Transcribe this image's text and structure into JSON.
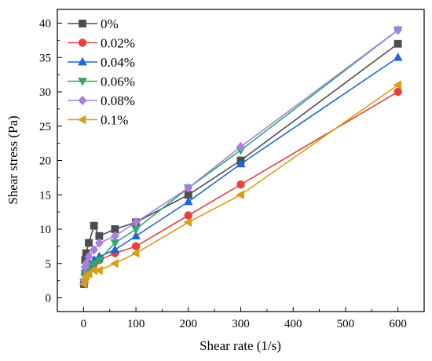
{
  "chart_data": {
    "type": "line",
    "xlabel": "Shear rate (1/s)",
    "ylabel": "Shear stress (Pa)",
    "xlim": [
      -50,
      650
    ],
    "ylim": [
      -2,
      42
    ],
    "xticks": [
      0,
      100,
      200,
      300,
      400,
      500,
      600
    ],
    "yticks": [
      0,
      5,
      10,
      15,
      20,
      25,
      30,
      35,
      40
    ],
    "grid": false,
    "legend_position": "top-left",
    "series": [
      {
        "name": "0%",
        "color": "#4d4d4d",
        "marker": "square",
        "x": [
          1,
          3,
          5,
          10,
          20,
          30,
          60,
          100,
          200,
          300,
          600
        ],
        "y": [
          2.0,
          5.5,
          6.5,
          8.0,
          10.5,
          9.0,
          10.0,
          11.0,
          15.0,
          20.0,
          37.0
        ]
      },
      {
        "name": "0.02%",
        "color": "#e8413b",
        "marker": "circle",
        "x": [
          1,
          3,
          5,
          10,
          20,
          30,
          60,
          100,
          200,
          300,
          600
        ],
        "y": [
          2.3,
          3.5,
          4.0,
          4.5,
          5.0,
          5.5,
          6.5,
          7.5,
          12.0,
          16.5,
          30.0
        ]
      },
      {
        "name": "0.04%",
        "color": "#1f64d8",
        "marker": "triangle-up",
        "x": [
          1,
          3,
          5,
          10,
          20,
          30,
          60,
          100,
          200,
          300,
          600
        ],
        "y": [
          2.5,
          3.8,
          4.5,
          5.0,
          5.5,
          6.0,
          7.0,
          9.0,
          14.0,
          19.5,
          35.0
        ]
      },
      {
        "name": "0.06%",
        "color": "#2ea869",
        "marker": "triangle-down",
        "x": [
          1,
          3,
          5,
          10,
          20,
          30,
          60,
          100,
          200,
          300,
          600
        ],
        "y": [
          2.3,
          3.5,
          4.0,
          4.5,
          5.0,
          5.5,
          8.0,
          10.0,
          16.0,
          21.5,
          39.0
        ]
      },
      {
        "name": "0.08%",
        "color": "#a87fe0",
        "marker": "diamond",
        "x": [
          1,
          3,
          5,
          10,
          20,
          30,
          60,
          100,
          200,
          300,
          600
        ],
        "y": [
          2.5,
          4.5,
          5.0,
          6.0,
          7.0,
          8.0,
          9.0,
          11.0,
          16.0,
          22.0,
          39.0
        ]
      },
      {
        "name": "0.1%",
        "color": "#d4a017",
        "marker": "triangle-left",
        "x": [
          1,
          3,
          5,
          10,
          20,
          30,
          60,
          100,
          200,
          300,
          600
        ],
        "y": [
          2.0,
          2.8,
          3.2,
          3.5,
          4.0,
          4.0,
          5.0,
          6.5,
          11.0,
          15.0,
          31.0
        ]
      }
    ]
  }
}
